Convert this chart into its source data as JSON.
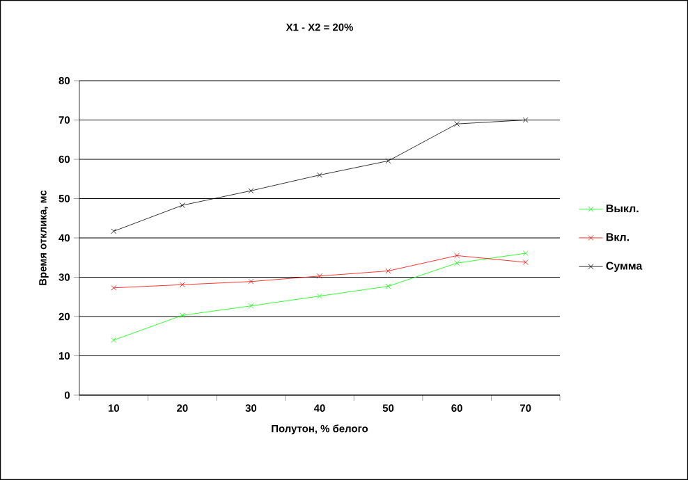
{
  "chart_data": {
    "type": "line",
    "title": "X1 - X2 = 20%",
    "xlabel": "Полутон, % белого",
    "ylabel": "Время отклика, мс",
    "categories": [
      "10",
      "20",
      "30",
      "40",
      "50",
      "60",
      "70"
    ],
    "series": [
      {
        "name": "Выкл.",
        "color": "#00ff00",
        "values": [
          14,
          20.3,
          22.7,
          25.2,
          27.7,
          33.6,
          36.1
        ]
      },
      {
        "name": "Вкл.",
        "color": "#ff0000",
        "values": [
          27.3,
          28.1,
          28.9,
          30.3,
          31.6,
          35.5,
          33.8
        ]
      },
      {
        "name": "Сумма",
        "color": "#000000",
        "values": [
          41.7,
          48.3,
          52,
          56,
          59.6,
          69,
          70
        ]
      }
    ],
    "ylim": [
      0,
      80
    ],
    "yticks": [
      0,
      10,
      20,
      30,
      40,
      50,
      60,
      70,
      80
    ],
    "grid": "y",
    "legend": "right",
    "marker": "cross",
    "line_style": "solid"
  }
}
